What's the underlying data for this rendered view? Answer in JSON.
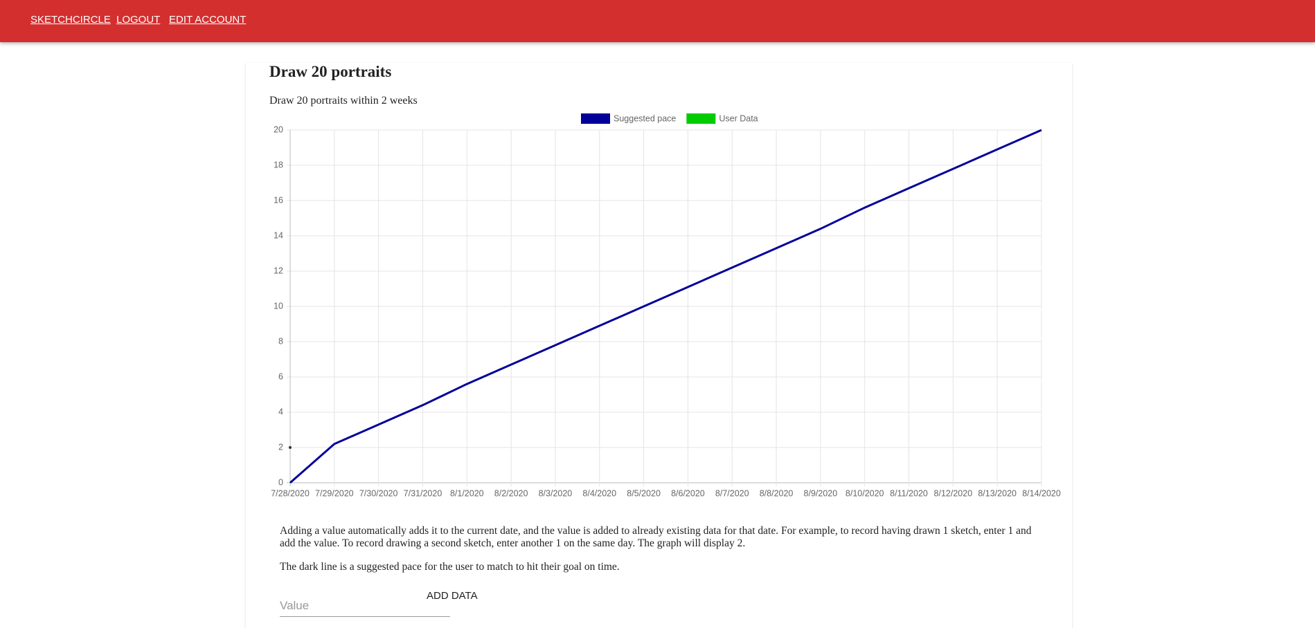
{
  "nav": {
    "links": [
      "SKETCHCIRCLE",
      "LOGOUT",
      "EDIT ACCOUNT"
    ]
  },
  "card": {
    "title": "Draw 20 portraits",
    "subtitle": "Draw 20 portraits within 2 weeks",
    "paragraphs": [
      "Adding a value automatically adds it to the current date, and the value is added to already existing data for that date. For example, to record having drawn 1 sketch, enter 1 and add the value. To record drawing a second sketch, enter another 1 on the same day. The graph will display 2.",
      "The dark line is a suggested pace for the user to match to hit their goal on time."
    ],
    "input_placeholder": "Value",
    "button": "ADD DATA"
  },
  "chart_data": {
    "type": "line",
    "categories": [
      "7/28/2020",
      "7/29/2020",
      "7/30/2020",
      "7/31/2020",
      "8/1/2020",
      "8/2/2020",
      "8/3/2020",
      "8/4/2020",
      "8/5/2020",
      "8/6/2020",
      "8/7/2020",
      "8/8/2020",
      "8/9/2020",
      "8/10/2020",
      "8/11/2020",
      "8/12/2020",
      "8/13/2020",
      "8/14/2020"
    ],
    "series": [
      {
        "name": "Suggested pace",
        "color": "#000099",
        "values": [
          0,
          2.2,
          3.3,
          4.4,
          5.6,
          6.7,
          7.8,
          8.9,
          10,
          11.1,
          12.2,
          13.3,
          14.4,
          15.6,
          16.7,
          17.8,
          18.9,
          20
        ]
      },
      {
        "name": "User Data",
        "color": "#00cc00",
        "values": [
          2,
          null,
          null,
          null,
          null,
          null,
          null,
          null,
          null,
          null,
          null,
          null,
          null,
          null,
          null,
          null,
          null,
          null
        ]
      }
    ],
    "ylim": [
      0,
      20
    ],
    "yticks": [
      0,
      2,
      4,
      6,
      8,
      10,
      12,
      14,
      16,
      18,
      20
    ],
    "grid": true,
    "legend": "top"
  }
}
